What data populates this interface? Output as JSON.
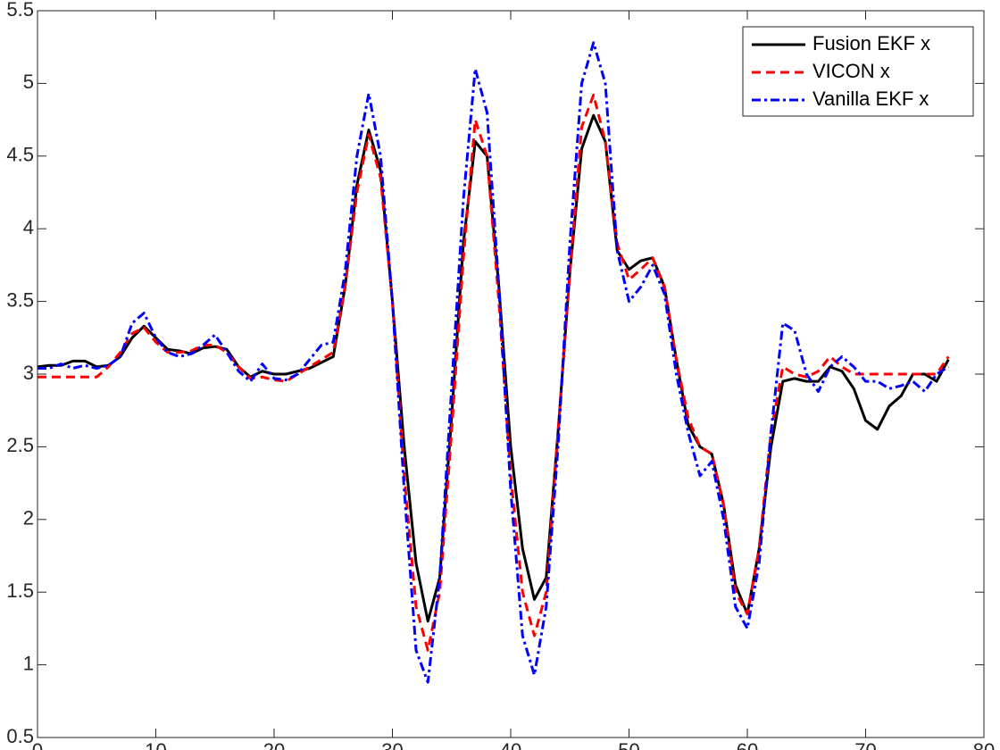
{
  "chart_data": {
    "type": "line",
    "x": [
      0,
      1,
      2,
      3,
      4,
      5,
      6,
      7,
      8,
      9,
      10,
      11,
      12,
      13,
      14,
      15,
      16,
      17,
      18,
      19,
      20,
      21,
      22,
      23,
      24,
      25,
      26,
      27,
      28,
      29,
      30,
      31,
      32,
      33,
      34,
      35,
      36,
      37,
      38,
      39,
      40,
      41,
      42,
      43,
      44,
      45,
      46,
      47,
      48,
      49,
      50,
      51,
      52,
      53,
      54,
      55,
      56,
      57,
      58,
      59,
      60,
      61,
      62,
      63,
      64,
      65,
      66,
      67,
      68,
      69,
      70,
      71,
      72,
      73,
      74,
      75,
      76,
      77
    ],
    "series": [
      {
        "name": "Fusion EKF x",
        "color": "#000000",
        "style": "solid",
        "values": [
          3.05,
          3.06,
          3.06,
          3.09,
          3.09,
          3.05,
          3.06,
          3.12,
          3.25,
          3.33,
          3.25,
          3.17,
          3.16,
          3.14,
          3.18,
          3.19,
          3.17,
          3.05,
          2.98,
          3.02,
          3.0,
          3.0,
          3.02,
          3.04,
          3.08,
          3.12,
          3.6,
          4.3,
          4.68,
          4.4,
          3.5,
          2.5,
          1.7,
          1.3,
          1.6,
          2.7,
          3.9,
          4.6,
          4.5,
          3.6,
          2.5,
          1.8,
          1.45,
          1.6,
          2.6,
          3.7,
          4.55,
          4.78,
          4.6,
          3.85,
          3.72,
          3.78,
          3.8,
          3.6,
          3.1,
          2.65,
          2.5,
          2.45,
          2.1,
          1.55,
          1.35,
          1.8,
          2.5,
          2.95,
          2.97,
          2.95,
          2.95,
          3.05,
          3.02,
          2.9,
          2.68,
          2.62,
          2.78,
          2.85,
          3.0,
          3.0,
          2.95,
          3.1
        ]
      },
      {
        "name": "VICON x",
        "color": "#ff0000",
        "style": "dashed",
        "values": [
          2.98,
          2.98,
          2.98,
          2.98,
          2.98,
          2.98,
          3.05,
          3.15,
          3.28,
          3.32,
          3.22,
          3.15,
          3.15,
          3.16,
          3.2,
          3.2,
          3.15,
          3.05,
          2.97,
          2.98,
          2.96,
          2.95,
          3.0,
          3.05,
          3.1,
          3.15,
          3.6,
          4.25,
          4.65,
          4.35,
          3.5,
          2.3,
          1.4,
          1.1,
          1.5,
          2.6,
          3.8,
          4.75,
          4.5,
          3.5,
          2.3,
          1.5,
          1.2,
          1.5,
          2.6,
          3.7,
          4.7,
          4.92,
          4.6,
          3.9,
          3.65,
          3.72,
          3.8,
          3.6,
          3.1,
          2.7,
          2.5,
          2.45,
          2.1,
          1.5,
          1.35,
          1.8,
          2.6,
          3.05,
          3.0,
          2.98,
          3.02,
          3.12,
          3.05,
          3.0,
          3.0,
          3.0,
          3.0,
          3.0,
          3.0,
          3.0,
          3.0,
          3.12
        ]
      },
      {
        "name": "Vanilla EKF x",
        "color": "#0000ff",
        "style": "dashdot",
        "values": [
          3.04,
          3.04,
          3.07,
          3.04,
          3.06,
          3.04,
          3.06,
          3.12,
          3.35,
          3.42,
          3.25,
          3.15,
          3.12,
          3.14,
          3.2,
          3.27,
          3.15,
          3.02,
          2.95,
          3.07,
          2.97,
          2.96,
          3.0,
          3.1,
          3.2,
          3.22,
          3.7,
          4.5,
          4.93,
          4.5,
          3.5,
          2.2,
          1.1,
          0.88,
          1.6,
          2.9,
          4.2,
          5.1,
          4.8,
          3.6,
          2.2,
          1.2,
          0.93,
          1.4,
          2.5,
          3.9,
          5.0,
          5.28,
          5.0,
          3.85,
          3.5,
          3.6,
          3.75,
          3.55,
          3.0,
          2.6,
          2.3,
          2.4,
          2.0,
          1.4,
          1.25,
          1.7,
          2.6,
          3.35,
          3.3,
          3.0,
          2.88,
          3.05,
          3.12,
          3.05,
          2.95,
          2.95,
          2.9,
          2.92,
          2.95,
          2.88,
          3.0,
          3.05
        ]
      }
    ],
    "xlim": [
      0,
      80
    ],
    "xticks": [
      0,
      10,
      20,
      30,
      40,
      50,
      60,
      70,
      80
    ],
    "ylim": [
      0.5,
      5.5
    ],
    "yticks": [
      0.5,
      1,
      1.5,
      2,
      2.5,
      3,
      3.5,
      4,
      4.5,
      5,
      5.5
    ],
    "grid": false,
    "legend": "northeast"
  }
}
